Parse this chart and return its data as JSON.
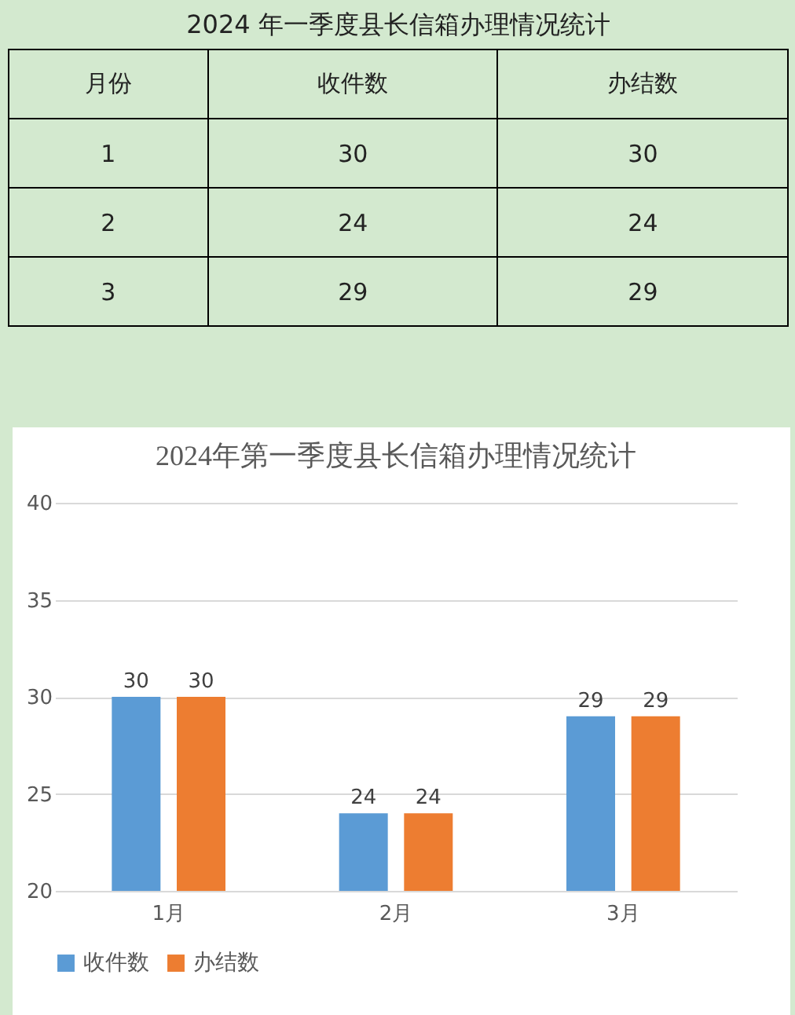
{
  "chart_data": [
    {
      "type": "other",
      "title": "2024 年一季度县长信箱办理情况统计",
      "xlabel": "月份",
      "data_labels": true,
      "categories": [
        "1",
        "2",
        "3"
      ],
      "series": [
        {
          "name": "收件数",
          "values": [
            30,
            24,
            29
          ]
        },
        {
          "name": "办结数",
          "values": [
            30,
            24,
            29
          ]
        }
      ]
    },
    {
      "type": "bar",
      "title": "2024年第一季度县长信箱办理情况统计",
      "categories": [
        "1月",
        "2月",
        "3月"
      ],
      "series": [
        {
          "name": "收件数",
          "color": "#5b9bd5",
          "values": [
            30,
            24,
            29
          ]
        },
        {
          "name": "办结数",
          "color": "#ed7d31",
          "values": [
            30,
            24,
            29
          ]
        }
      ],
      "ylim": [
        20,
        40
      ],
      "yticks": [
        20,
        25,
        30,
        35,
        40
      ],
      "grid": "y",
      "legend": "bottom",
      "data_labels": true
    }
  ]
}
